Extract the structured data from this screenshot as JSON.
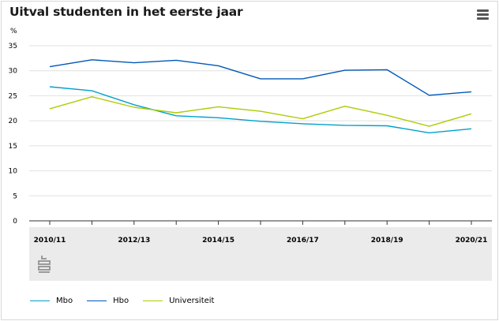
{
  "title": "Uitval studenten in het eerste jaar",
  "menu_icon": "hamburger-menu-icon",
  "logo_icon": "cbs-logo-icon",
  "chart_data": {
    "type": "line",
    "title": "Uitval studenten in het eerste jaar",
    "ylabel": "%",
    "xlabel": "",
    "ylim": [
      0,
      35
    ],
    "yticks": [
      0,
      5,
      10,
      15,
      20,
      25,
      30,
      35
    ],
    "categories": [
      "2010/11",
      "2011/12",
      "2012/13",
      "2013/14",
      "2014/15",
      "2015/16",
      "2016/17",
      "2017/18",
      "2018/19",
      "2019/20",
      "2020/21"
    ],
    "xtick_labels": [
      "2010/11",
      "",
      "2012/13",
      "",
      "2014/15",
      "",
      "2016/17",
      "",
      "2018/19",
      "",
      "2020/21"
    ],
    "grid": true,
    "legend_position": "bottom-left",
    "series": [
      {
        "name": "Mbo",
        "color": "#00a1cd",
        "values": [
          26.8,
          26.0,
          23.2,
          21.0,
          20.6,
          19.9,
          19.4,
          19.1,
          19.0,
          17.6,
          18.4
        ]
      },
      {
        "name": "Hbo",
        "color": "#0058b8",
        "values": [
          30.8,
          32.2,
          31.6,
          32.1,
          31.0,
          28.4,
          28.4,
          30.1,
          30.2,
          25.1,
          25.8
        ]
      },
      {
        "name": "Universiteit",
        "color": "#afcb05",
        "values": [
          22.4,
          24.8,
          22.7,
          21.6,
          22.8,
          21.9,
          20.4,
          22.9,
          21.1,
          18.9,
          21.4
        ]
      }
    ]
  }
}
